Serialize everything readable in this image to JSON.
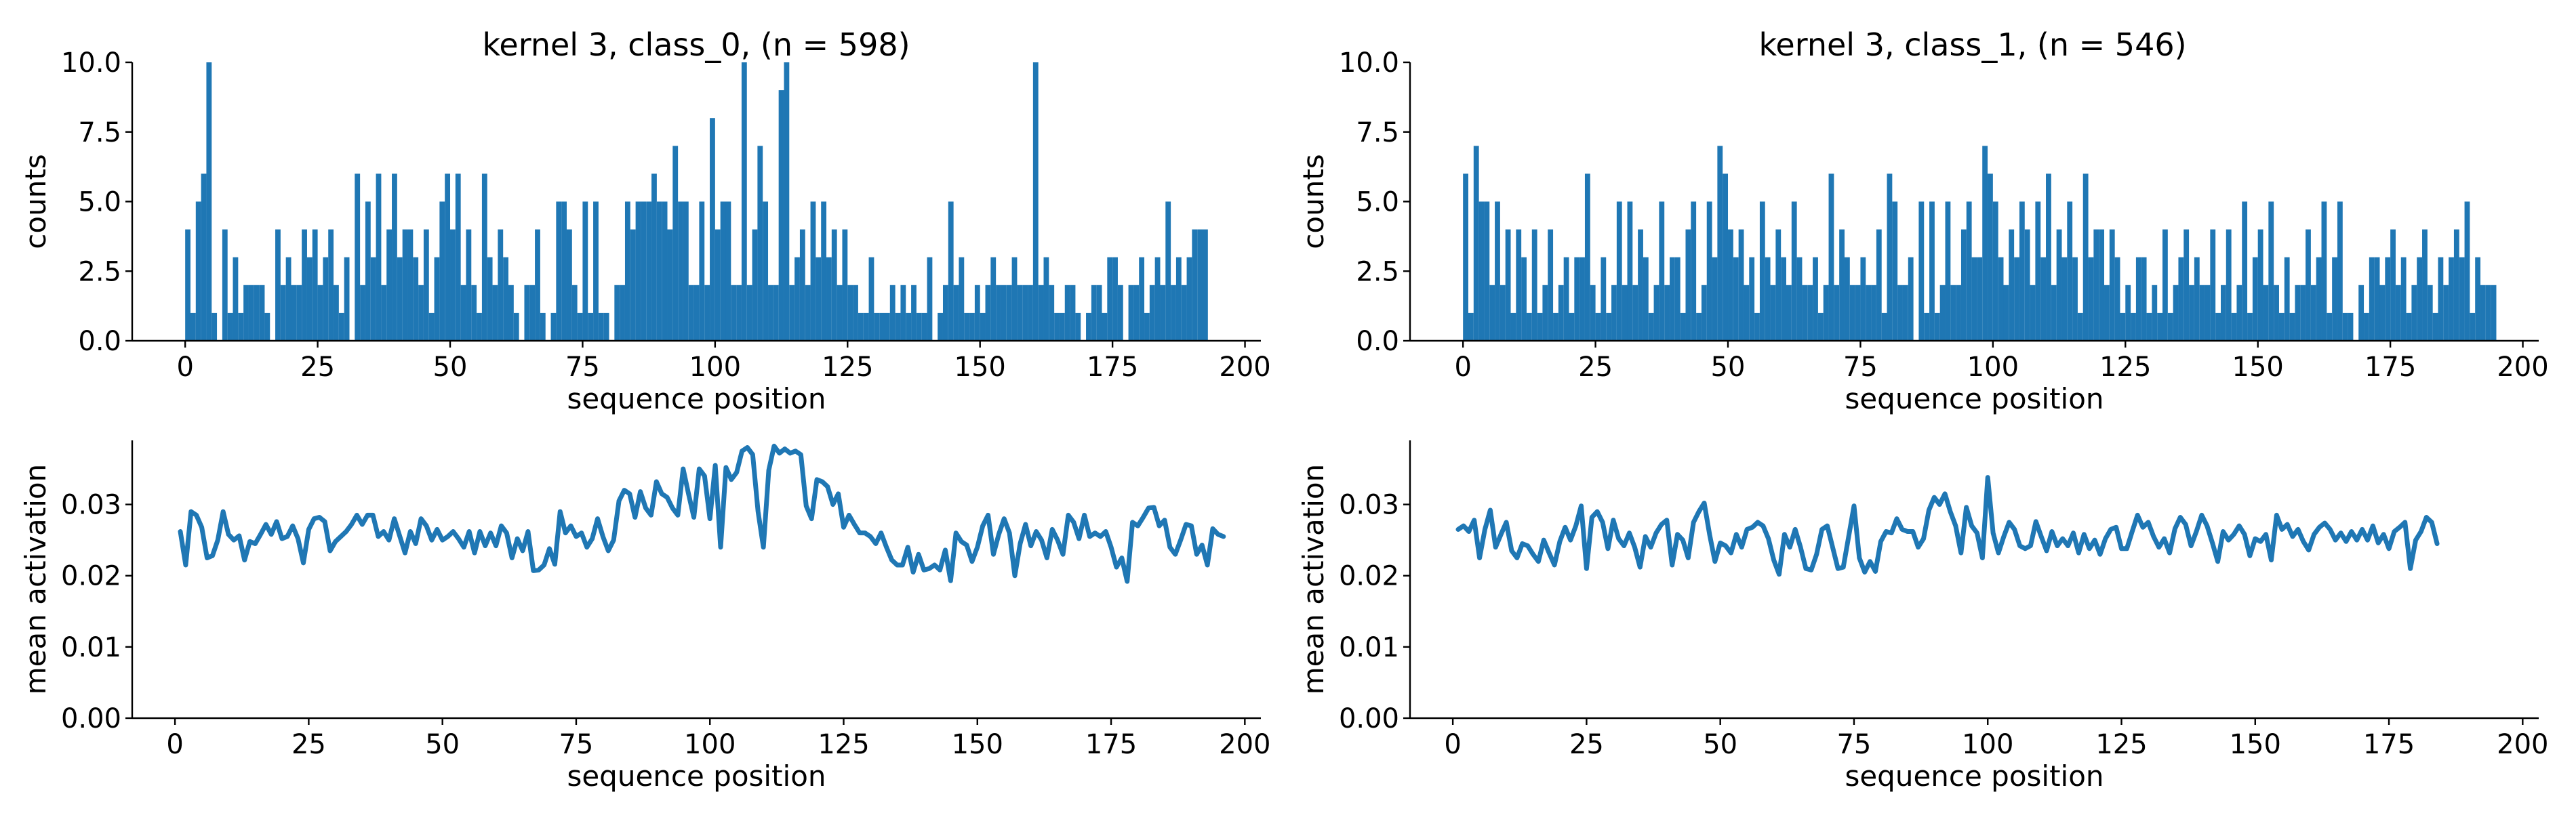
{
  "figure": {
    "panels": [
      {
        "title": "kernel 3, class_0, (n = 598)"
      },
      {
        "title": ""
      },
      {
        "title": "kernel 3, class_1, (n = 546)"
      },
      {
        "title": ""
      }
    ]
  },
  "chart_data": [
    {
      "type": "bar",
      "title": "kernel 3, class_0, (n = 598)",
      "xlabel": "sequence position",
      "ylabel": "counts",
      "xlim": [
        -10,
        203
      ],
      "ylim": [
        0,
        10
      ],
      "xticks": [
        0,
        25,
        50,
        75,
        100,
        125,
        150,
        175,
        200
      ],
      "xticklabels": [
        "0",
        "25",
        "50",
        "75",
        "100",
        "125",
        "150",
        "175",
        "200"
      ],
      "yticks": [
        0,
        2.5,
        5,
        7.5,
        10
      ],
      "yticklabels": [
        "0.0",
        "2.5",
        "5.0",
        "7.5",
        "10.0"
      ],
      "color": "#1f77b4",
      "grid": false,
      "x_start": 0,
      "values": [
        4,
        1,
        5,
        6,
        10,
        1,
        0,
        4,
        1,
        3,
        1,
        2,
        2,
        2,
        2,
        1,
        0,
        4,
        2,
        3,
        2,
        2,
        4,
        3,
        4,
        2,
        3,
        4,
        2,
        1,
        3,
        0,
        6,
        2,
        5,
        3,
        6,
        2,
        4,
        6,
        3,
        4,
        4,
        3,
        2,
        4,
        1,
        3,
        5,
        6,
        4,
        6,
        2,
        4,
        2,
        1,
        6,
        3,
        2,
        4,
        3,
        2,
        1,
        0,
        2,
        2,
        4,
        1,
        0,
        1,
        5,
        5,
        4,
        2,
        1,
        5,
        1,
        5,
        1,
        1,
        0,
        2,
        2,
        5,
        4,
        5,
        5,
        5,
        6,
        5,
        5,
        4,
        7,
        5,
        5,
        2,
        2,
        5,
        2,
        8,
        4,
        5,
        5,
        2,
        2,
        10,
        2,
        4,
        7,
        5,
        2,
        2,
        9,
        10,
        2,
        3,
        4,
        2,
        5,
        3,
        5,
        3,
        4,
        2,
        4,
        2,
        2,
        1,
        1,
        3,
        1,
        1,
        1,
        2,
        1,
        2,
        1,
        2,
        1,
        1,
        3,
        0,
        1,
        2,
        5,
        2,
        3,
        1,
        1,
        2,
        1,
        2,
        3,
        2,
        2,
        2,
        3,
        2,
        2,
        2,
        10,
        2,
        3,
        2,
        1,
        1,
        2,
        2,
        1,
        0,
        1,
        2,
        2,
        1,
        3,
        3,
        2,
        0,
        2,
        2,
        3,
        1,
        2,
        3,
        2,
        5,
        2,
        3,
        2,
        3,
        4,
        4,
        4
      ],
      "xstep": 1,
      "bar_width": 1,
      "series": [
        {
          "values": "values"
        }
      ]
    },
    {
      "type": "line",
      "xlabel": "sequence position",
      "ylabel": "mean activation",
      "xlim": [
        -8,
        203
      ],
      "ylim": [
        0,
        0.039
      ],
      "xticks": [
        0,
        25,
        50,
        75,
        100,
        125,
        150,
        175,
        200
      ],
      "xticklabels": [
        "0",
        "25",
        "50",
        "75",
        "100",
        "125",
        "150",
        "175",
        "200"
      ],
      "yticks": [
        0,
        0.01,
        0.02,
        0.03
      ],
      "yticklabels": [
        "0.00",
        "0.01",
        "0.02",
        "0.03"
      ],
      "color": "#1f77b4",
      "grid": false,
      "x_start": 1,
      "values": [
        0.0262,
        0.0215,
        0.029,
        0.0285,
        0.0268,
        0.0225,
        0.0228,
        0.025,
        0.029,
        0.0258,
        0.025,
        0.0256,
        0.0222,
        0.0248,
        0.0245,
        0.0258,
        0.0272,
        0.0258,
        0.0276,
        0.0252,
        0.0255,
        0.027,
        0.0252,
        0.0218,
        0.0265,
        0.028,
        0.0282,
        0.0276,
        0.0235,
        0.0248,
        0.0255,
        0.0262,
        0.0272,
        0.0285,
        0.0272,
        0.0285,
        0.0285,
        0.0255,
        0.0262,
        0.025,
        0.028,
        0.0256,
        0.0232,
        0.0262,
        0.0245,
        0.028,
        0.027,
        0.025,
        0.0265,
        0.025,
        0.0255,
        0.0262,
        0.0252,
        0.024,
        0.0262,
        0.0232,
        0.0262,
        0.0242,
        0.026,
        0.0242,
        0.027,
        0.026,
        0.0225,
        0.0252,
        0.0235,
        0.0262,
        0.0207,
        0.0208,
        0.0215,
        0.0238,
        0.0216,
        0.029,
        0.026,
        0.027,
        0.0255,
        0.026,
        0.024,
        0.0252,
        0.028,
        0.0255,
        0.0235,
        0.025,
        0.0305,
        0.032,
        0.0315,
        0.0282,
        0.0318,
        0.0295,
        0.0285,
        0.0332,
        0.0315,
        0.031,
        0.0295,
        0.0285,
        0.035,
        0.0315,
        0.0282,
        0.035,
        0.034,
        0.028,
        0.0355,
        0.024,
        0.0352,
        0.0335,
        0.0345,
        0.0375,
        0.038,
        0.037,
        0.029,
        0.024,
        0.0348,
        0.0382,
        0.0372,
        0.0378,
        0.0372,
        0.0375,
        0.037,
        0.0298,
        0.028,
        0.0335,
        0.0332,
        0.0325,
        0.03,
        0.0315,
        0.0268,
        0.0285,
        0.0272,
        0.026,
        0.026,
        0.0255,
        0.0245,
        0.026,
        0.024,
        0.0222,
        0.0215,
        0.0215,
        0.024,
        0.0205,
        0.023,
        0.0208,
        0.021,
        0.0215,
        0.0208,
        0.0236,
        0.0193,
        0.026,
        0.0248,
        0.0243,
        0.022,
        0.024,
        0.027,
        0.0285,
        0.023,
        0.0258,
        0.028,
        0.026,
        0.02,
        0.0245,
        0.0272,
        0.0242,
        0.0262,
        0.025,
        0.0225,
        0.0265,
        0.025,
        0.023,
        0.0285,
        0.0275,
        0.0252,
        0.0285,
        0.0255,
        0.026,
        0.0255,
        0.0262,
        0.024,
        0.0212,
        0.0225,
        0.0192,
        0.0275,
        0.027,
        0.0282,
        0.0295,
        0.0296,
        0.027,
        0.0278,
        0.024,
        0.023,
        0.025,
        0.0272,
        0.027,
        0.023,
        0.0243,
        0.0215,
        0.0266,
        0.0258,
        0.0255
      ],
      "series": [
        {
          "values": "values"
        }
      ]
    },
    {
      "type": "bar",
      "title": "kernel 3, class_1, (n = 546)",
      "xlabel": "sequence position",
      "ylabel": "counts",
      "xlim": [
        -10,
        203
      ],
      "ylim": [
        0,
        10
      ],
      "xticks": [
        0,
        25,
        50,
        75,
        100,
        125,
        150,
        175,
        200
      ],
      "xticklabels": [
        "0",
        "25",
        "50",
        "75",
        "100",
        "125",
        "150",
        "175",
        "200"
      ],
      "yticks": [
        0,
        2.5,
        5,
        7.5,
        10
      ],
      "yticklabels": [
        "0.0",
        "2.5",
        "5.0",
        "7.5",
        "10.0"
      ],
      "color": "#1f77b4",
      "grid": false,
      "x_start": 0,
      "values": [
        6,
        1,
        7,
        5,
        5,
        2,
        5,
        2,
        4,
        1,
        4,
        3,
        1,
        4,
        1,
        2,
        4,
        1,
        2,
        3,
        1,
        3,
        3,
        6,
        2,
        1,
        3,
        1,
        2,
        5,
        2,
        5,
        2,
        4,
        3,
        1,
        2,
        5,
        2,
        3,
        3,
        1,
        4,
        5,
        1,
        2,
        5,
        3,
        7,
        6,
        4,
        3,
        4,
        2,
        3,
        1,
        5,
        3,
        2,
        4,
        3,
        2,
        5,
        3,
        2,
        2,
        3,
        1,
        2,
        6,
        2,
        4,
        3,
        2,
        2,
        3,
        2,
        2,
        4,
        1,
        6,
        5,
        2,
        2,
        3,
        0,
        5,
        1,
        5,
        1,
        2,
        5,
        2,
        2,
        4,
        5,
        3,
        3,
        7,
        6,
        5,
        3,
        2,
        4,
        3,
        5,
        4,
        2,
        5,
        3,
        6,
        2,
        4,
        3,
        5,
        3,
        1,
        6,
        3,
        4,
        4,
        2,
        4,
        3,
        1,
        2,
        1,
        3,
        3,
        1,
        2,
        1,
        4,
        1,
        2,
        3,
        4,
        2,
        3,
        2,
        2,
        4,
        1,
        2,
        4,
        1,
        2,
        5,
        1,
        3,
        4,
        2,
        5,
        2,
        1,
        3,
        1,
        2,
        2,
        4,
        2,
        3,
        5,
        1,
        3,
        5,
        1,
        1,
        0,
        2,
        1,
        3,
        3,
        2,
        3,
        4,
        2,
        3,
        1,
        2,
        3,
        4,
        2,
        1,
        3,
        2,
        3,
        4,
        3,
        5,
        1,
        3,
        2,
        2,
        2
      ],
      "xstep": 1,
      "bar_width": 1,
      "series": [
        {
          "values": "values"
        }
      ]
    },
    {
      "type": "line",
      "xlabel": "sequence position",
      "ylabel": "mean activation",
      "xlim": [
        -8,
        203
      ],
      "ylim": [
        0,
        0.039
      ],
      "xticks": [
        0,
        25,
        50,
        75,
        100,
        125,
        150,
        175,
        200
      ],
      "xticklabels": [
        "0",
        "25",
        "50",
        "75",
        "100",
        "125",
        "150",
        "175",
        "200"
      ],
      "yticks": [
        0,
        0.01,
        0.02,
        0.03
      ],
      "yticklabels": [
        "0.00",
        "0.01",
        "0.02",
        "0.03"
      ],
      "color": "#1f77b4",
      "grid": false,
      "x_start": 1,
      "values": [
        0.0265,
        0.027,
        0.0262,
        0.0278,
        0.0225,
        0.0265,
        0.0292,
        0.024,
        0.0258,
        0.0275,
        0.0235,
        0.0225,
        0.0245,
        0.0242,
        0.023,
        0.022,
        0.025,
        0.0232,
        0.0215,
        0.0248,
        0.0268,
        0.025,
        0.027,
        0.0298,
        0.021,
        0.0282,
        0.029,
        0.0275,
        0.0238,
        0.0278,
        0.0252,
        0.0242,
        0.026,
        0.024,
        0.0212,
        0.0255,
        0.024,
        0.026,
        0.0272,
        0.0278,
        0.0215,
        0.0258,
        0.025,
        0.0225,
        0.0275,
        0.029,
        0.0302,
        0.0258,
        0.022,
        0.0246,
        0.0242,
        0.0232,
        0.0258,
        0.024,
        0.0265,
        0.0268,
        0.0275,
        0.027,
        0.0252,
        0.0222,
        0.0202,
        0.0258,
        0.024,
        0.0265,
        0.024,
        0.021,
        0.0208,
        0.023,
        0.0265,
        0.027,
        0.024,
        0.021,
        0.0212,
        0.0255,
        0.0298,
        0.0225,
        0.0205,
        0.022,
        0.0206,
        0.0248,
        0.0262,
        0.026,
        0.028,
        0.0265,
        0.0262,
        0.0262,
        0.024,
        0.0252,
        0.0292,
        0.031,
        0.03,
        0.0315,
        0.029,
        0.027,
        0.0232,
        0.0296,
        0.027,
        0.026,
        0.0225,
        0.0338,
        0.026,
        0.0232,
        0.0255,
        0.0275,
        0.0265,
        0.0242,
        0.0238,
        0.0242,
        0.0276,
        0.0255,
        0.0235,
        0.0262,
        0.0242,
        0.0252,
        0.0242,
        0.026,
        0.0232,
        0.0258,
        0.0238,
        0.025,
        0.023,
        0.0252,
        0.0265,
        0.0268,
        0.0238,
        0.0238,
        0.0262,
        0.0285,
        0.0268,
        0.0275,
        0.0255,
        0.024,
        0.0252,
        0.0232,
        0.0266,
        0.0282,
        0.0272,
        0.0242,
        0.0262,
        0.0285,
        0.027,
        0.0246,
        0.022,
        0.0262,
        0.025,
        0.0258,
        0.027,
        0.0258,
        0.0228,
        0.0252,
        0.0248,
        0.0258,
        0.0222,
        0.0285,
        0.0265,
        0.0272,
        0.0255,
        0.0265,
        0.0248,
        0.0236,
        0.0258,
        0.0268,
        0.0274,
        0.0265,
        0.025,
        0.026,
        0.0248,
        0.0262,
        0.025,
        0.0265,
        0.025,
        0.027,
        0.0246,
        0.0258,
        0.0238,
        0.0262,
        0.0268,
        0.0275,
        0.021,
        0.025,
        0.0262,
        0.0282,
        0.0275,
        0.0245
      ],
      "series": [
        {
          "values": "values"
        }
      ]
    }
  ]
}
